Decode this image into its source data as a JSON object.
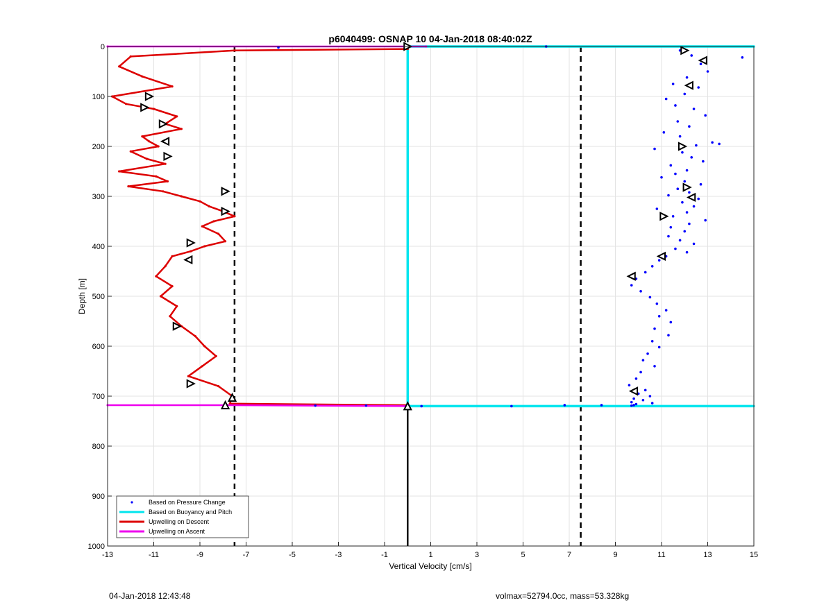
{
  "figure": {
    "footer_left": "04-Jan-2018 12:43:48",
    "footer_right": "volmax=52794.0cc, mass=53.328kg"
  },
  "chart_data": {
    "type": "scatter",
    "title": "p6040499: OSNAP 10 04-Jan-2018 08:40:02Z",
    "xlabel": "Vertical Velocity [cm/s]",
    "ylabel": "Depth [m]",
    "xlim": [
      -13,
      15
    ],
    "ylim": [
      1000,
      0
    ],
    "y_reversed": true,
    "grid": true,
    "xticks": [
      -13,
      -11,
      -9,
      -7,
      -5,
      -3,
      -1,
      1,
      3,
      5,
      7,
      9,
      11,
      13,
      15
    ],
    "xtick_labels": [
      "-13",
      "-11",
      "-9",
      "-7",
      "-5",
      "-3",
      "-1",
      "1",
      "3",
      "5",
      "7",
      "9",
      "11",
      "13",
      "15"
    ],
    "yticks": [
      0,
      100,
      200,
      300,
      400,
      500,
      600,
      700,
      800,
      900,
      1000
    ],
    "ytick_labels": [
      "0",
      "100",
      "200",
      "300",
      "400",
      "500",
      "600",
      "700",
      "800",
      "900",
      "1000"
    ],
    "legend": {
      "placement": "bottom-left",
      "entries": [
        {
          "label": "Based on Pressure Change",
          "color": "#0000ff",
          "marker": "dot"
        },
        {
          "label": "Based on Buoyancy and Pitch",
          "color": "#00e5ee",
          "marker": "line"
        },
        {
          "label": "Upwelling on Descent",
          "color": "#dd0000",
          "marker": "line"
        },
        {
          "label": "Upwelling on Ascent",
          "color": "#ee00ee",
          "marker": "line"
        }
      ]
    },
    "reference_lines": {
      "vertical_dashed_x": [
        -7.5,
        7.5
      ],
      "zero_line": {
        "x": 0,
        "depth_from": 720,
        "depth_to": 1000,
        "color": "#000000"
      }
    },
    "series": [
      {
        "name": "Upwelling on Descent",
        "color": "#dd0000",
        "style": "line",
        "x": [
          0,
          -7.5,
          -12,
          -12.5,
          -11.5,
          -10.2,
          -12.8,
          -12.2,
          -11.0,
          -10.0,
          -10.5,
          -9.8,
          -11.5,
          -11.2,
          -10.8,
          -12.0,
          -11.3,
          -10.5,
          -12.5,
          -10.9,
          -10.4,
          -12.1,
          -10.6,
          -9.8,
          -9.0,
          -8.6,
          -8.0,
          -7.5,
          -8.4,
          -8.9,
          -8.2,
          -7.9,
          -8.8,
          -9.4,
          -10.2,
          -10.5,
          -10.9,
          -10.2,
          -10.7,
          -10.0,
          -10.3,
          -9.8,
          -9.2,
          -8.8,
          -8.3,
          -8.9,
          -9.5,
          -8.2,
          -7.6,
          -7.7,
          0
        ],
        "y": [
          5,
          8,
          20,
          40,
          60,
          80,
          100,
          115,
          125,
          140,
          155,
          165,
          180,
          190,
          200,
          210,
          225,
          235,
          250,
          260,
          270,
          280,
          290,
          300,
          310,
          320,
          330,
          340,
          350,
          360,
          375,
          390,
          400,
          410,
          420,
          440,
          460,
          480,
          500,
          520,
          540,
          560,
          580,
          600,
          620,
          640,
          660,
          680,
          700,
          715,
          718
        ]
      },
      {
        "name": "Upwelling on Ascent",
        "color": "#ee00ee",
        "style": "line",
        "x": [
          -13,
          0,
          0.8
        ],
        "y": [
          0,
          0,
          0
        ]
      },
      {
        "name": "Upwelling on Ascent (bottom)",
        "color": "#ee00ee",
        "style": "line",
        "x": [
          -13,
          -7.8,
          0
        ],
        "y": [
          718,
          718,
          720
        ]
      },
      {
        "name": "Based on Buoyancy and Pitch",
        "color": "#00e5ee",
        "style": "line",
        "x": [
          0,
          15,
          0,
          0,
          0,
          15
        ],
        "y": [
          0,
          0,
          0,
          720,
          720,
          720
        ]
      },
      {
        "name": "Based on Pressure Change",
        "color": "#0000ff",
        "style": "dots",
        "x": [
          11.8,
          12.3,
          14.5,
          12.7,
          13.0,
          12.1,
          11.5,
          12.6,
          12.0,
          11.2,
          11.6,
          12.4,
          12.9,
          11.7,
          12.2,
          11.1,
          11.8,
          13.2,
          12.5,
          10.7,
          11.9,
          12.3,
          12.8,
          11.4,
          12.1,
          11.6,
          13.5,
          11.0,
          12.0,
          12.7,
          11.7,
          12.2,
          11.3,
          12.6,
          11.9,
          12.4,
          10.8,
          12.1,
          11.5,
          12.9,
          12.2,
          11.4,
          12.0,
          11.3,
          11.8,
          12.4,
          11.6,
          12.1,
          11.2,
          10.9,
          10.6,
          10.3,
          9.9,
          9.7,
          10.1,
          10.5,
          10.8,
          11.2,
          10.9,
          11.4,
          10.7,
          11.3,
          10.6,
          10.9,
          10.4,
          10.2,
          10.7,
          10.1,
          9.9,
          9.6,
          10.3,
          10.0,
          10.5,
          9.8,
          10.2,
          9.7,
          10.6,
          9.9,
          9.8,
          9.7,
          8.4,
          6.8,
          4.5,
          0.6,
          -1.8,
          -4.0,
          -5.6,
          6.0
        ],
        "y": [
          8,
          18,
          22,
          35,
          50,
          62,
          75,
          82,
          95,
          105,
          118,
          125,
          138,
          150,
          160,
          172,
          180,
          192,
          198,
          205,
          212,
          222,
          230,
          238,
          248,
          255,
          195,
          262,
          270,
          276,
          285,
          292,
          298,
          305,
          312,
          320,
          325,
          332,
          340,
          348,
          355,
          362,
          370,
          380,
          388,
          395,
          405,
          412,
          420,
          428,
          440,
          452,
          465,
          478,
          490,
          502,
          515,
          528,
          540,
          552,
          565,
          578,
          590,
          602,
          615,
          628,
          640,
          652,
          665,
          678,
          688,
          695,
          700,
          705,
          708,
          712,
          714,
          716,
          718,
          719,
          718,
          718,
          720,
          720,
          719,
          719,
          2,
          0
        ]
      }
    ],
    "direction_markers": [
      {
        "x": -11.2,
        "y": 100,
        "dir": "right"
      },
      {
        "x": -11.4,
        "y": 122,
        "dir": "right"
      },
      {
        "x": -10.6,
        "y": 155,
        "dir": "right"
      },
      {
        "x": -10.5,
        "y": 190,
        "dir": "left"
      },
      {
        "x": -10.4,
        "y": 220,
        "dir": "right"
      },
      {
        "x": -7.9,
        "y": 290,
        "dir": "right"
      },
      {
        "x": -7.9,
        "y": 330,
        "dir": "right"
      },
      {
        "x": -9.4,
        "y": 393,
        "dir": "right"
      },
      {
        "x": -9.5,
        "y": 427,
        "dir": "left"
      },
      {
        "x": -10.0,
        "y": 560,
        "dir": "right"
      },
      {
        "x": -9.4,
        "y": 675,
        "dir": "right"
      },
      {
        "x": -7.6,
        "y": 703,
        "dir": "up"
      },
      {
        "x": -7.9,
        "y": 718,
        "dir": "up"
      },
      {
        "x": 0,
        "y": 0,
        "dir": "right"
      },
      {
        "x": 0,
        "y": 720,
        "dir": "up"
      },
      {
        "x": 12.0,
        "y": 8,
        "dir": "right"
      },
      {
        "x": 12.8,
        "y": 28,
        "dir": "left"
      },
      {
        "x": 12.2,
        "y": 78,
        "dir": "left"
      },
      {
        "x": 11.9,
        "y": 200,
        "dir": "right"
      },
      {
        "x": 12.1,
        "y": 282,
        "dir": "right"
      },
      {
        "x": 12.3,
        "y": 302,
        "dir": "left"
      },
      {
        "x": 11.1,
        "y": 340,
        "dir": "right"
      },
      {
        "x": 11.0,
        "y": 420,
        "dir": "left"
      },
      {
        "x": 9.7,
        "y": 460,
        "dir": "left"
      },
      {
        "x": 9.8,
        "y": 690,
        "dir": "left"
      }
    ]
  }
}
